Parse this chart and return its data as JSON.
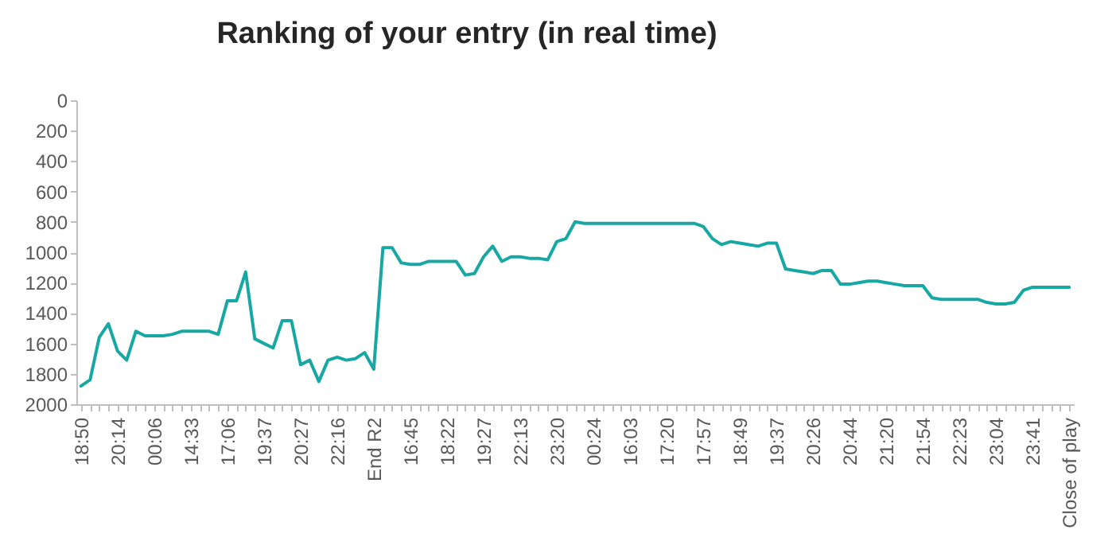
{
  "chart_data": {
    "type": "line",
    "title": "Ranking of your entry (in real time)",
    "categories": [
      "18:50",
      null,
      null,
      null,
      "20:14",
      null,
      null,
      null,
      "00:06",
      null,
      null,
      null,
      "14:33",
      null,
      null,
      null,
      "17:06",
      null,
      null,
      null,
      "19:37",
      null,
      null,
      null,
      "20:27",
      null,
      null,
      null,
      "22:16",
      null,
      null,
      null,
      "End R2",
      null,
      null,
      null,
      "16:45",
      null,
      null,
      null,
      "18:22",
      null,
      null,
      null,
      "19:27",
      null,
      null,
      null,
      "22:13",
      null,
      null,
      null,
      "23:20",
      null,
      null,
      null,
      "00:24",
      null,
      null,
      null,
      "16:03",
      null,
      null,
      null,
      "17:20",
      null,
      null,
      null,
      "17:57",
      null,
      null,
      null,
      "18:49",
      null,
      null,
      null,
      "19:37",
      null,
      null,
      null,
      "20:26",
      null,
      null,
      null,
      "20:44",
      null,
      null,
      null,
      "21:20",
      null,
      null,
      null,
      "21:54",
      null,
      null,
      null,
      "22:23",
      null,
      null,
      null,
      "23:04",
      null,
      null,
      null,
      "23:41",
      null,
      null,
      null,
      "Close of play"
    ],
    "series": [
      {
        "color": "#17a8a4",
        "values": [
          1880,
          1840,
          1560,
          1470,
          1650,
          1710,
          1520,
          1550,
          1550,
          1550,
          1540,
          1520,
          1520,
          1520,
          1520,
          1540,
          1320,
          1320,
          1130,
          1570,
          1600,
          1630,
          1450,
          1450,
          1740,
          1710,
          1850,
          1710,
          1690,
          1710,
          1700,
          1660,
          1770,
          970,
          970,
          1070,
          1080,
          1080,
          1060,
          1060,
          1060,
          1060,
          1150,
          1140,
          1030,
          960,
          1060,
          1030,
          1030,
          1040,
          1040,
          1050,
          930,
          910,
          800,
          810,
          810,
          810,
          810,
          810,
          810,
          810,
          810,
          810,
          810,
          810,
          810,
          810,
          830,
          910,
          950,
          930,
          940,
          950,
          960,
          940,
          940,
          1110,
          1120,
          1130,
          1140,
          1120,
          1120,
          1210,
          1210,
          1200,
          1190,
          1190,
          1200,
          1210,
          1220,
          1220,
          1220,
          1300,
          1310,
          1310,
          1310,
          1310,
          1310,
          1330,
          1340,
          1340,
          1330,
          1250,
          1230,
          1230,
          1230,
          1230,
          1230
        ]
      }
    ],
    "ylim": [
      2000,
      0
    ],
    "yticks": [
      0,
      200,
      400,
      600,
      800,
      1000,
      1200,
      1400,
      1600,
      1800,
      2000
    ],
    "grid": false,
    "marker": "none",
    "line_style": "solid"
  }
}
